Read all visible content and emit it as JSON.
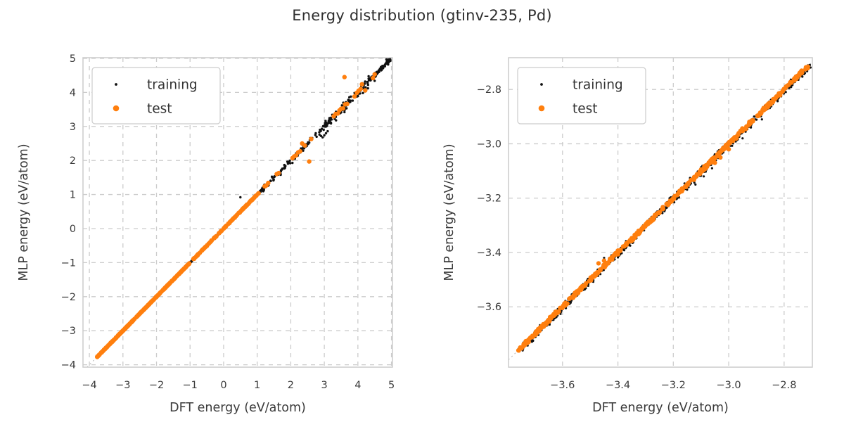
{
  "title": "Energy distribution (gtinv-235, Pd)",
  "style": {
    "background": "#ffffff",
    "training_color": "#111111",
    "test_color": "#ff7f0e",
    "grid_color": "#cccccc",
    "spine_color": "#cccccc",
    "text_color": "#3a3a3a",
    "title_color": "#2f2f2f",
    "identity_color": "#b5b5b5",
    "legend_border": "#cccccc",
    "legend_bg": "#ffffff"
  },
  "seed": 20240501,
  "chart_data": [
    {
      "type": "scatter",
      "panel": "left",
      "xlabel": "DFT energy (eV/atom)",
      "ylabel": "MLP energy (eV/atom)",
      "xlim": [
        -4.19,
        5.03
      ],
      "ylim": [
        -4.07,
        5.02
      ],
      "xticks": [
        -4,
        -3,
        -2,
        -1,
        0,
        1,
        2,
        3,
        4,
        5
      ],
      "xtick_labels": [
        "−4",
        "−3",
        "−2",
        "−1",
        "0",
        "1",
        "2",
        "3",
        "4",
        "5"
      ],
      "yticks": [
        -4,
        -3,
        -2,
        -1,
        0,
        1,
        2,
        3,
        4,
        5
      ],
      "ytick_labels": [
        "−4",
        "−3",
        "−2",
        "−1",
        "0",
        "1",
        "2",
        "3",
        "4",
        "5"
      ],
      "grid": "dashed",
      "identity_line": true,
      "legend": {
        "position": "upper-left",
        "entries": [
          {
            "series": "training",
            "label": "training"
          },
          {
            "series": "test",
            "label": "test"
          }
        ]
      },
      "series": [
        {
          "name": "training",
          "marker_radius": 1.7,
          "bands": [
            {
              "from": -3.78,
              "to": 1.15,
              "count": 520,
              "jitter": 0.013
            },
            {
              "from": 1.1,
              "to": 3.0,
              "count": 85,
              "jitter": 0.05
            },
            {
              "from": 3.0,
              "to": 4.4,
              "count": 115,
              "jitter": 0.08
            },
            {
              "from": 4.4,
              "to": 4.97,
              "count": 85,
              "jitter": 0.035
            }
          ],
          "points": [
            [
              0.5,
              0.92
            ],
            [
              2.9,
              2.72
            ],
            [
              2.95,
              2.68
            ],
            [
              3.0,
              2.74
            ],
            [
              3.05,
              2.8
            ],
            [
              3.1,
              2.86
            ],
            [
              2.98,
              2.9
            ],
            [
              3.35,
              3.18
            ],
            [
              3.6,
              3.42
            ],
            [
              4.3,
              4.12
            ],
            [
              4.5,
              4.34
            ],
            [
              4.15,
              3.98
            ],
            [
              2.05,
              1.93
            ],
            [
              1.7,
              1.58
            ],
            [
              4.85,
              4.97
            ],
            [
              4.9,
              4.82
            ],
            [
              0.35,
              0.3
            ],
            [
              1.15,
              1.18
            ]
          ]
        },
        {
          "name": "test",
          "marker_radius": 3.2,
          "bands": [
            {
              "from": -3.78,
              "to": -1.0,
              "count": 300,
              "jitter": 0.004
            },
            {
              "from": -1.0,
              "to": 1.05,
              "count": 90,
              "jitter": 0.006
            }
          ],
          "points": [
            [
              -0.9,
              -0.89
            ],
            [
              -0.78,
              -0.79
            ],
            [
              -0.63,
              -0.62
            ],
            [
              -0.5,
              -0.51
            ],
            [
              -0.36,
              -0.35
            ],
            [
              -0.22,
              -0.23
            ],
            [
              -0.08,
              -0.07
            ],
            [
              0.04,
              0.05
            ],
            [
              0.18,
              0.17
            ],
            [
              0.29,
              0.3
            ],
            [
              0.33,
              0.32
            ],
            [
              0.55,
              0.56
            ],
            [
              0.69,
              0.7
            ],
            [
              0.74,
              0.73
            ],
            [
              0.8,
              0.81
            ],
            [
              0.86,
              0.85
            ],
            [
              0.92,
              0.93
            ],
            [
              1.22,
              1.24
            ],
            [
              1.28,
              1.27
            ],
            [
              1.33,
              1.34
            ],
            [
              1.58,
              1.6
            ],
            [
              1.64,
              1.63
            ],
            [
              2.05,
              2.07
            ],
            [
              2.1,
              2.12
            ],
            [
              2.16,
              2.15
            ],
            [
              2.22,
              2.24
            ],
            [
              2.28,
              2.27
            ],
            [
              2.34,
              2.5
            ],
            [
              2.42,
              2.44
            ],
            [
              2.55,
              1.97
            ],
            [
              2.61,
              2.63
            ],
            [
              3.28,
              3.3
            ],
            [
              3.34,
              3.37
            ],
            [
              3.4,
              3.38
            ],
            [
              3.45,
              3.47
            ],
            [
              3.5,
              3.52
            ],
            [
              3.56,
              3.53
            ],
            [
              3.6,
              4.45
            ],
            [
              3.62,
              3.65
            ],
            [
              3.68,
              3.66
            ],
            [
              3.9,
              3.88
            ],
            [
              3.97,
              3.99
            ],
            [
              4.02,
              4.05
            ],
            [
              4.08,
              4.1
            ],
            [
              4.12,
              4.24
            ],
            [
              4.22,
              4.06
            ],
            [
              4.45,
              4.42
            ],
            [
              4.5,
              4.53
            ]
          ]
        }
      ]
    },
    {
      "type": "scatter",
      "panel": "right",
      "xlabel": "DFT energy (eV/atom)",
      "ylabel": "MLP energy (eV/atom)",
      "xlim": [
        -3.795,
        -2.698
      ],
      "ylim": [
        -3.822,
        -2.683
      ],
      "xticks": [
        -3.6,
        -3.4,
        -3.2,
        -3.0,
        -2.8
      ],
      "xtick_labels": [
        "−3.6",
        "−3.4",
        "−3.2",
        "−3.0",
        "−2.8"
      ],
      "yticks": [
        -2.8,
        -3.0,
        -3.2,
        -3.4,
        -3.6
      ],
      "ytick_labels": [
        "−2.8",
        "−3.0",
        "−3.2",
        "−3.4",
        "−3.6"
      ],
      "grid": "dashed",
      "identity_line": true,
      "legend": {
        "position": "upper-left",
        "entries": [
          {
            "series": "training",
            "label": "training"
          },
          {
            "series": "test",
            "label": "test"
          }
        ]
      },
      "series": [
        {
          "name": "training",
          "marker_radius": 1.6,
          "bands": [
            {
              "from": -3.76,
              "to": -2.703,
              "count": 760,
              "jitter": 0.009,
              "bias": -0.003
            }
          ],
          "points": [
            [
              -3.12,
              -3.15
            ],
            [
              -3.09,
              -3.12
            ],
            [
              -3.06,
              -3.09
            ],
            [
              -3.45,
              -3.42
            ],
            [
              -2.95,
              -2.98
            ],
            [
              -2.92,
              -2.94
            ],
            [
              -2.88,
              -2.91
            ]
          ]
        },
        {
          "name": "test",
          "marker_radius": 3.2,
          "bands": [
            {
              "from": -3.76,
              "to": -2.71,
              "count": 520,
              "jitter": 0.004
            }
          ],
          "points": [
            [
              -3.05,
              -3.07
            ],
            [
              -3.03,
              -3.05
            ],
            [
              -3.0,
              -3.02
            ],
            [
              -3.45,
              -3.43
            ],
            [
              -3.47,
              -3.44
            ]
          ]
        }
      ]
    }
  ]
}
